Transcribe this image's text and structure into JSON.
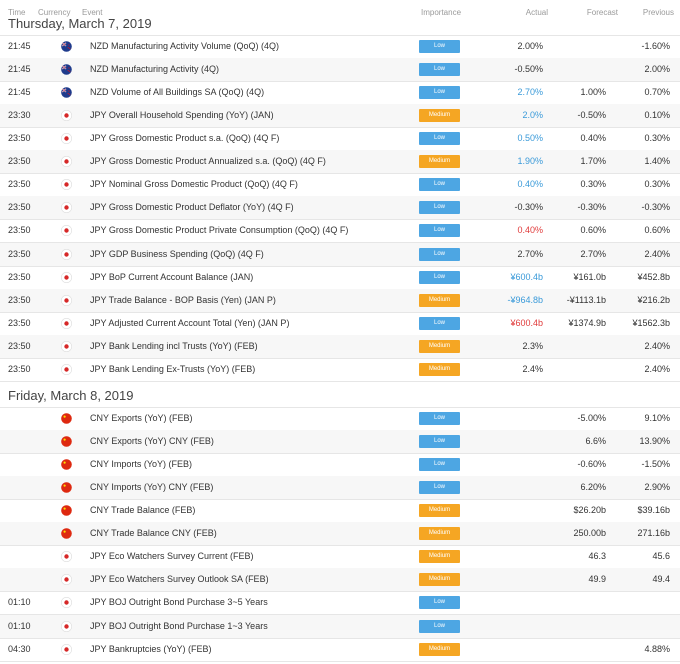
{
  "header": {
    "time": "Time",
    "currency": "Currency",
    "event": "Event",
    "importance": "Importance",
    "actual": "Actual",
    "forecast": "Forecast",
    "previous": "Previous"
  },
  "colors": {
    "low": "#4da6e3",
    "medium": "#f5a623",
    "actual_better": "#3a9ad9",
    "actual_worse": "#e03b3b"
  },
  "days": [
    {
      "title": "Thursday, March 7, 2019",
      "rows": [
        {
          "time": "21:45",
          "flag": "nz-flag-icon",
          "event": "NZD Manufacturing Activity Volume (QoQ) (4Q)",
          "importance": "Low",
          "actual": "2.00%",
          "actual_tone": "",
          "forecast": "",
          "previous": "-1.60%"
        },
        {
          "time": "21:45",
          "flag": "nz-flag-icon",
          "event": "NZD Manufacturing Activity (4Q)",
          "importance": "Low",
          "actual": "-0.50%",
          "actual_tone": "",
          "forecast": "",
          "previous": "2.00%"
        },
        {
          "time": "21:45",
          "flag": "nz-flag-icon",
          "event": "NZD Volume of All Buildings SA (QoQ) (4Q)",
          "importance": "Low",
          "actual": "2.70%",
          "actual_tone": "up",
          "forecast": "1.00%",
          "previous": "0.70%"
        },
        {
          "time": "23:30",
          "flag": "jp-flag-icon",
          "event": "JPY Overall Household Spending (YoY) (JAN)",
          "importance": "Medium",
          "actual": "2.0%",
          "actual_tone": "up",
          "forecast": "-0.50%",
          "previous": "0.10%"
        },
        {
          "time": "23:50",
          "flag": "jp-flag-icon",
          "event": "JPY Gross Domestic Product s.a. (QoQ) (4Q F)",
          "importance": "Low",
          "actual": "0.50%",
          "actual_tone": "up",
          "forecast": "0.40%",
          "previous": "0.30%"
        },
        {
          "time": "23:50",
          "flag": "jp-flag-icon",
          "event": "JPY Gross Domestic Product Annualized s.a. (QoQ) (4Q F)",
          "importance": "Medium",
          "actual": "1.90%",
          "actual_tone": "up",
          "forecast": "1.70%",
          "previous": "1.40%"
        },
        {
          "time": "23:50",
          "flag": "jp-flag-icon",
          "event": "JPY Nominal Gross Domestic Product (QoQ) (4Q F)",
          "importance": "Low",
          "actual": "0.40%",
          "actual_tone": "up",
          "forecast": "0.30%",
          "previous": "0.30%"
        },
        {
          "time": "23:50",
          "flag": "jp-flag-icon",
          "event": "JPY Gross Domestic Product Deflator (YoY) (4Q F)",
          "importance": "Low",
          "actual": "-0.30%",
          "actual_tone": "",
          "forecast": "-0.30%",
          "previous": "-0.30%"
        },
        {
          "time": "23:50",
          "flag": "jp-flag-icon",
          "event": "JPY Gross Domestic Product Private Consumption (QoQ) (4Q F)",
          "importance": "Low",
          "actual": "0.40%",
          "actual_tone": "down",
          "forecast": "0.60%",
          "previous": "0.60%"
        },
        {
          "time": "23:50",
          "flag": "jp-flag-icon",
          "event": "JPY GDP Business Spending (QoQ) (4Q F)",
          "importance": "Low",
          "actual": "2.70%",
          "actual_tone": "",
          "forecast": "2.70%",
          "previous": "2.40%"
        },
        {
          "time": "23:50",
          "flag": "jp-flag-icon",
          "event": "JPY BoP Current Account Balance (JAN)",
          "importance": "Low",
          "actual": "¥600.4b",
          "actual_tone": "up",
          "forecast": "¥161.0b",
          "previous": "¥452.8b"
        },
        {
          "time": "23:50",
          "flag": "jp-flag-icon",
          "event": "JPY Trade Balance - BOP Basis (Yen) (JAN P)",
          "importance": "Medium",
          "actual": "-¥964.8b",
          "actual_tone": "up",
          "forecast": "-¥1113.1b",
          "previous": "¥216.2b"
        },
        {
          "time": "23:50",
          "flag": "jp-flag-icon",
          "event": "JPY Adjusted Current Account Total (Yen) (JAN P)",
          "importance": "Low",
          "actual": "¥600.4b",
          "actual_tone": "down",
          "forecast": "¥1374.9b",
          "previous": "¥1562.3b"
        },
        {
          "time": "23:50",
          "flag": "jp-flag-icon",
          "event": "JPY Bank Lending incl Trusts (YoY) (FEB)",
          "importance": "Medium",
          "actual": "2.3%",
          "actual_tone": "",
          "forecast": "",
          "previous": "2.40%"
        },
        {
          "time": "23:50",
          "flag": "jp-flag-icon",
          "event": "JPY Bank Lending Ex-Trusts (YoY) (FEB)",
          "importance": "Medium",
          "actual": "2.4%",
          "actual_tone": "",
          "forecast": "",
          "previous": "2.40%"
        }
      ]
    },
    {
      "title": "Friday, March 8, 2019",
      "rows": [
        {
          "time": "",
          "flag": "cn-flag-icon",
          "event": "CNY Exports (YoY) (FEB)",
          "importance": "Low",
          "actual": "",
          "actual_tone": "",
          "forecast": "-5.00%",
          "previous": "9.10%"
        },
        {
          "time": "",
          "flag": "cn-flag-icon",
          "event": "CNY Exports (YoY) CNY (FEB)",
          "importance": "Low",
          "actual": "",
          "actual_tone": "",
          "forecast": "6.6%",
          "previous": "13.90%"
        },
        {
          "time": "",
          "flag": "cn-flag-icon",
          "event": "CNY Imports (YoY) (FEB)",
          "importance": "Low",
          "actual": "",
          "actual_tone": "",
          "forecast": "-0.60%",
          "previous": "-1.50%"
        },
        {
          "time": "",
          "flag": "cn-flag-icon",
          "event": "CNY Imports (YoY) CNY (FEB)",
          "importance": "Low",
          "actual": "",
          "actual_tone": "",
          "forecast": "6.20%",
          "previous": "2.90%"
        },
        {
          "time": "",
          "flag": "cn-flag-icon",
          "event": "CNY Trade Balance (FEB)",
          "importance": "Medium",
          "actual": "",
          "actual_tone": "",
          "forecast": "$26.20b",
          "previous": "$39.16b"
        },
        {
          "time": "",
          "flag": "cn-flag-icon",
          "event": "CNY Trade Balance CNY (FEB)",
          "importance": "Medium",
          "actual": "",
          "actual_tone": "",
          "forecast": "250.00b",
          "previous": "271.16b"
        },
        {
          "time": "",
          "flag": "jp-flag-icon",
          "event": "JPY Eco Watchers Survey Current (FEB)",
          "importance": "Medium",
          "actual": "",
          "actual_tone": "",
          "forecast": "46.3",
          "previous": "45.6"
        },
        {
          "time": "",
          "flag": "jp-flag-icon",
          "event": "JPY Eco Watchers Survey Outlook SA (FEB)",
          "importance": "Medium",
          "actual": "",
          "actual_tone": "",
          "forecast": "49.9",
          "previous": "49.4"
        },
        {
          "time": "01:10",
          "flag": "jp-flag-icon",
          "event": "JPY BOJ Outright Bond Purchase 3~5 Years",
          "importance": "Low",
          "actual": "",
          "actual_tone": "",
          "forecast": "",
          "previous": ""
        },
        {
          "time": "01:10",
          "flag": "jp-flag-icon",
          "event": "JPY BOJ Outright Bond Purchase 1~3 Years",
          "importance": "Low",
          "actual": "",
          "actual_tone": "",
          "forecast": "",
          "previous": ""
        },
        {
          "time": "04:30",
          "flag": "jp-flag-icon",
          "event": "JPY Bankruptcies (YoY) (FEB)",
          "importance": "Medium",
          "actual": "",
          "actual_tone": "",
          "forecast": "",
          "previous": "4.88%"
        }
      ]
    }
  ]
}
